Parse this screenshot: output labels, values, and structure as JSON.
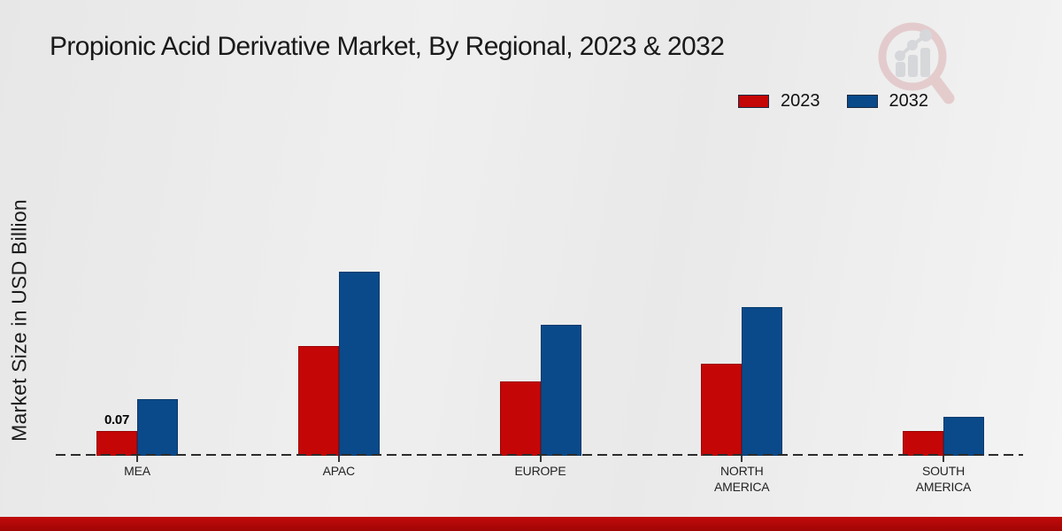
{
  "page": {
    "title": "Propionic Acid Derivative Market, By Regional, 2023 & 2032",
    "accent_color": "#b00707",
    "background_color": "#ededed"
  },
  "watermark": {
    "icon": "magnifier-growth-chart-logo"
  },
  "chart_data": {
    "type": "bar",
    "title": "Propionic Acid Derivative Market, By Regional, 2023 & 2032",
    "xlabel": "",
    "ylabel": "Market Size in USD Billion",
    "categories": [
      "MEA",
      "APAC",
      "EUROPE",
      "NORTH AMERICA",
      "SOUTH AMERICA"
    ],
    "category_display": [
      "MEA",
      "APAC",
      "EUROPE",
      "NORTH\nAMERICA",
      "SOUTH\nAMERICA"
    ],
    "series": [
      {
        "name": "2023",
        "color": "#c40606",
        "border_color": "#9c0404",
        "values": [
          0.07,
          0.31,
          0.21,
          0.26,
          0.07
        ]
      },
      {
        "name": "2032",
        "color": "#0a4a8a",
        "border_color": "#083a6d",
        "values": [
          0.16,
          0.52,
          0.37,
          0.42,
          0.11
        ]
      }
    ],
    "data_labels": [
      {
        "category": "MEA",
        "series": "2023",
        "text": "0.07"
      }
    ],
    "ylim": [
      0,
      0.6
    ],
    "grid": false,
    "y_axis_ticks_visible": false,
    "baseline_style": "dashed",
    "legend_position": "top-right"
  }
}
